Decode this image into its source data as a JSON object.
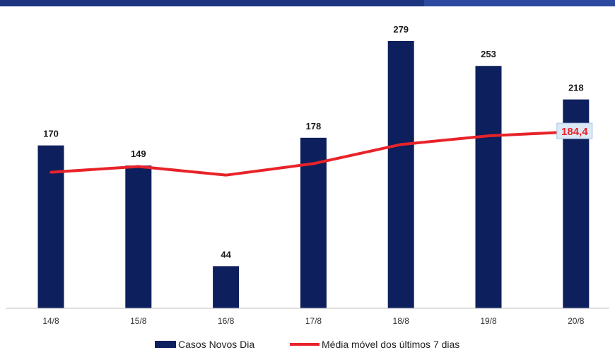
{
  "chart_data": {
    "type": "bar",
    "title": "",
    "xlabel": "",
    "ylabel": "",
    "categories": [
      "14/8",
      "15/8",
      "16/8",
      "17/8",
      "18/8",
      "19/8",
      "20/8"
    ],
    "series": [
      {
        "name": "Casos Novos Dia",
        "type": "bar",
        "color": "#0d1f5c",
        "values": [
          170,
          149,
          44,
          178,
          279,
          253,
          218
        ],
        "labels": [
          "170",
          "149",
          "44",
          "178",
          "279",
          "253",
          "218"
        ]
      },
      {
        "name": "Média móvel dos últimos 7 dias",
        "type": "line",
        "color": "#e8232a",
        "values": [
          142,
          148,
          139,
          151,
          171,
          180,
          184.4
        ],
        "last_label": "184,4"
      }
    ],
    "ylim": [
      0,
      300
    ],
    "grid": false,
    "legend_position": "bottom"
  },
  "colors": {
    "bar": "#0d1f5c",
    "line": "#e8232a",
    "header": "#2b4aa0",
    "axis": "#bfbfbf"
  }
}
